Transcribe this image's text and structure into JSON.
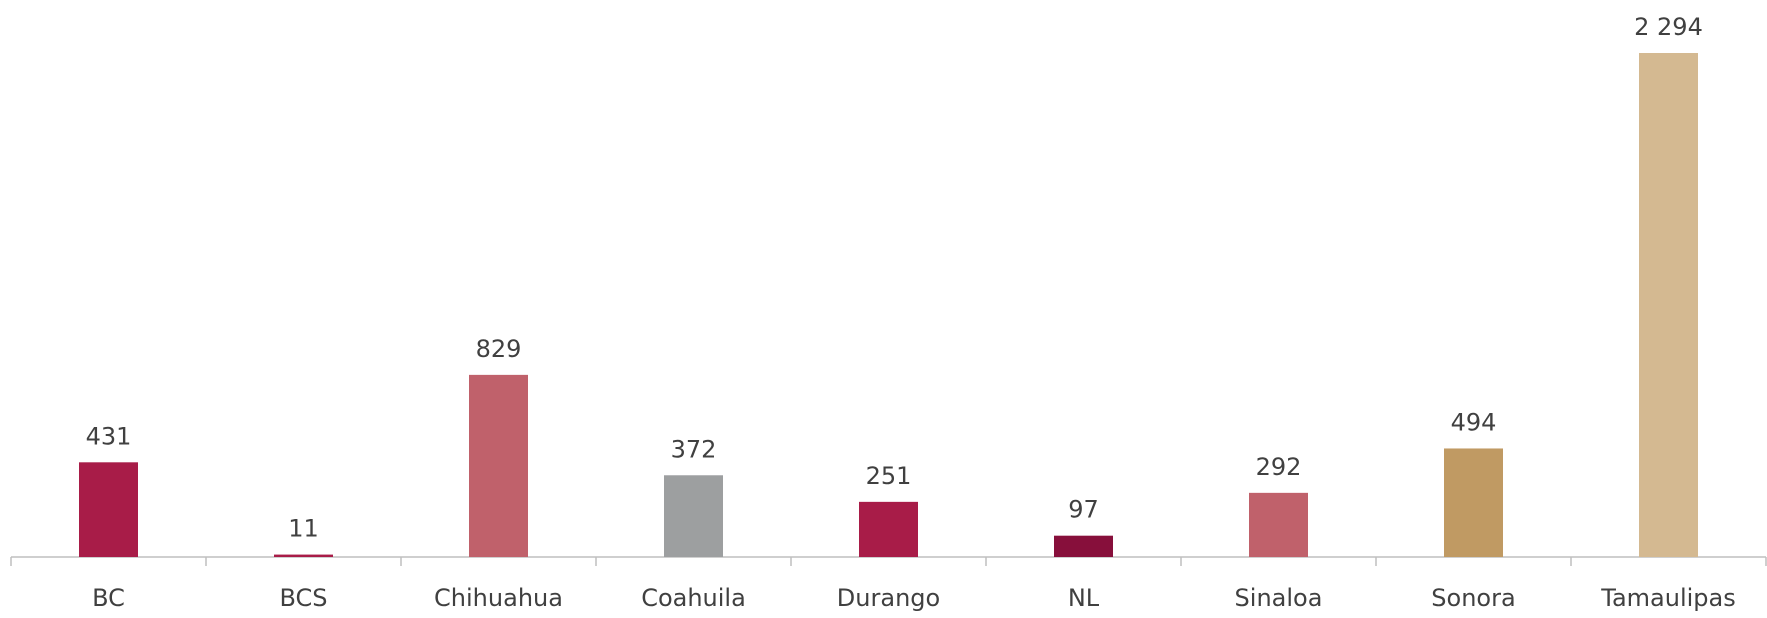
{
  "chart_data": {
    "type": "bar",
    "categories": [
      "BC",
      "BCS",
      "Chihuahua",
      "Coahuila",
      "Durango",
      "NL",
      "Sinaloa",
      "Sonora",
      "Tamaulipas"
    ],
    "values": [
      431,
      11,
      829,
      372,
      251,
      97,
      292,
      494,
      2294
    ],
    "value_labels": [
      "431",
      "11",
      "829",
      "372",
      "251",
      "97",
      "292",
      "494",
      "2 294"
    ],
    "colors": [
      "#a81c48",
      "#a81c48",
      "#c0616b",
      "#9d9fa0",
      "#a81c48",
      "#870f3b",
      "#c0616b",
      "#c09a63",
      "#d4b991"
    ]
  }
}
